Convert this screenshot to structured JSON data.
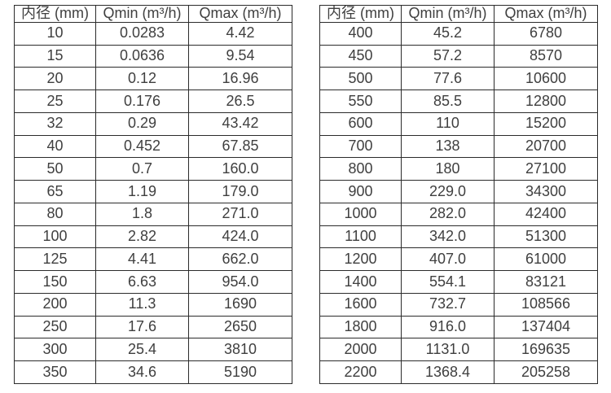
{
  "page": {
    "background_color": "#ffffff",
    "text_color": "#3f3f3f",
    "border_color": "#2b2b2b"
  },
  "chart_data": [
    {
      "type": "table",
      "name": "flow-table-small-diameters",
      "columns": [
        {
          "label": "内径",
          "unit": "(mm)"
        },
        {
          "label": "Qmin",
          "unit": "(m³/h)"
        },
        {
          "label": "Qmax",
          "unit": "(m³/h)"
        }
      ],
      "rows": [
        [
          "10",
          "0.0283",
          "4.42"
        ],
        [
          "15",
          "0.0636",
          "9.54"
        ],
        [
          "20",
          "0.12",
          "16.96"
        ],
        [
          "25",
          "0.176",
          "26.5"
        ],
        [
          "32",
          "0.29",
          "43.42"
        ],
        [
          "40",
          "0.452",
          "67.85"
        ],
        [
          "50",
          "0.7",
          "160.0"
        ],
        [
          "65",
          "1.19",
          "179.0"
        ],
        [
          "80",
          "1.8",
          "271.0"
        ],
        [
          "100",
          "2.82",
          "424.0"
        ],
        [
          "125",
          "4.41",
          "662.0"
        ],
        [
          "150",
          "6.63",
          "954.0"
        ],
        [
          "200",
          "11.3",
          "1690"
        ],
        [
          "250",
          "17.6",
          "2650"
        ],
        [
          "300",
          "25.4",
          "3810"
        ],
        [
          "350",
          "34.6",
          "5190"
        ]
      ]
    },
    {
      "type": "table",
      "name": "flow-table-large-diameters",
      "columns": [
        {
          "label": "内径",
          "unit": "(mm)"
        },
        {
          "label": "Qmin",
          "unit": "(m³/h)"
        },
        {
          "label": "Qmax",
          "unit": "(m³/h)"
        }
      ],
      "rows": [
        [
          "400",
          "45.2",
          "6780"
        ],
        [
          "450",
          "57.2",
          "8570"
        ],
        [
          "500",
          "77.6",
          "10600"
        ],
        [
          "550",
          "85.5",
          "12800"
        ],
        [
          "600",
          "110",
          "15200"
        ],
        [
          "700",
          "138",
          "20700"
        ],
        [
          "800",
          "180",
          "27100"
        ],
        [
          "900",
          "229.0",
          "34300"
        ],
        [
          "1000",
          "282.0",
          "42400"
        ],
        [
          "1100",
          "342.0",
          "51300"
        ],
        [
          "1200",
          "407.0",
          "61000"
        ],
        [
          "1400",
          "554.1",
          "83121"
        ],
        [
          "1600",
          "732.7",
          "108566"
        ],
        [
          "1800",
          "916.0",
          "137404"
        ],
        [
          "2000",
          "1131.0",
          "169635"
        ],
        [
          "2200",
          "1368.4",
          "205258"
        ]
      ]
    }
  ]
}
